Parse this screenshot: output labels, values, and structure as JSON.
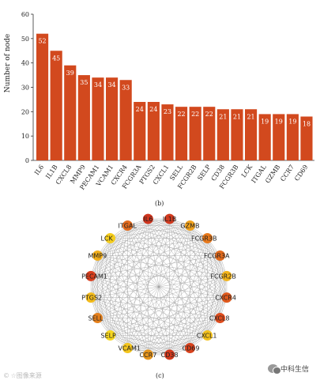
{
  "chart_data": [
    {
      "type": "bar",
      "ylabel": "Number of node",
      "ylim": [
        0,
        60
      ],
      "yticks": [
        0,
        10,
        20,
        30,
        40,
        50,
        60
      ],
      "categories": [
        "IL6",
        "IL1B",
        "CXCL8",
        "MMP9",
        "PECAM1",
        "VCAM1",
        "CXCR4",
        "FCGR3A",
        "PTGS2",
        "CXCL1",
        "SELL",
        "FCGR2B",
        "SELP",
        "CD38",
        "FCGR3B",
        "LCK",
        "ITGAL",
        "GZMB",
        "CCR7",
        "CD69"
      ],
      "values": [
        52,
        45,
        39,
        35,
        34,
        34,
        33,
        24,
        24,
        23,
        22,
        22,
        22,
        21,
        21,
        21,
        19,
        19,
        19,
        18
      ],
      "bar_color": "#d2491e",
      "grid": false
    },
    {
      "type": "network",
      "layout": "circle",
      "nodes": [
        {
          "name": "IL1B",
          "color": "#d23a1e"
        },
        {
          "name": "GZMB",
          "color": "#f1a11c"
        },
        {
          "name": "FCGR3B",
          "color": "#e8791b"
        },
        {
          "name": "FCGR3A",
          "color": "#e26a1c"
        },
        {
          "name": "FCGR2B",
          "color": "#f2b31a"
        },
        {
          "name": "CXCR4",
          "color": "#e0591c"
        },
        {
          "name": "CXCL8",
          "color": "#df4d1d"
        },
        {
          "name": "CXCL1",
          "color": "#f3c11b"
        },
        {
          "name": "CD69",
          "color": "#d8421d"
        },
        {
          "name": "CD38",
          "color": "#d2391d"
        },
        {
          "name": "CCR7",
          "color": "#e5941c"
        },
        {
          "name": "VCAM1",
          "color": "#f4c51c"
        },
        {
          "name": "SELP",
          "color": "#f7d71f"
        },
        {
          "name": "SELL",
          "color": "#e6801b"
        },
        {
          "name": "PTGS2",
          "color": "#f3bb1b"
        },
        {
          "name": "PECAM1",
          "color": "#d83e1d"
        },
        {
          "name": "MMP9",
          "color": "#f1ae1b"
        },
        {
          "name": "LCK",
          "color": "#f5cd1d"
        },
        {
          "name": "ITGAL",
          "color": "#e26a1c"
        },
        {
          "name": "IL6",
          "color": "#cf351d"
        }
      ],
      "edge_color": "#9a9a9a",
      "fully_connected": true
    }
  ],
  "captions": {
    "b": "(b)",
    "c": "(c)"
  },
  "watermark_left": "© ☆图像来源",
  "watermark_right": "中科生信"
}
